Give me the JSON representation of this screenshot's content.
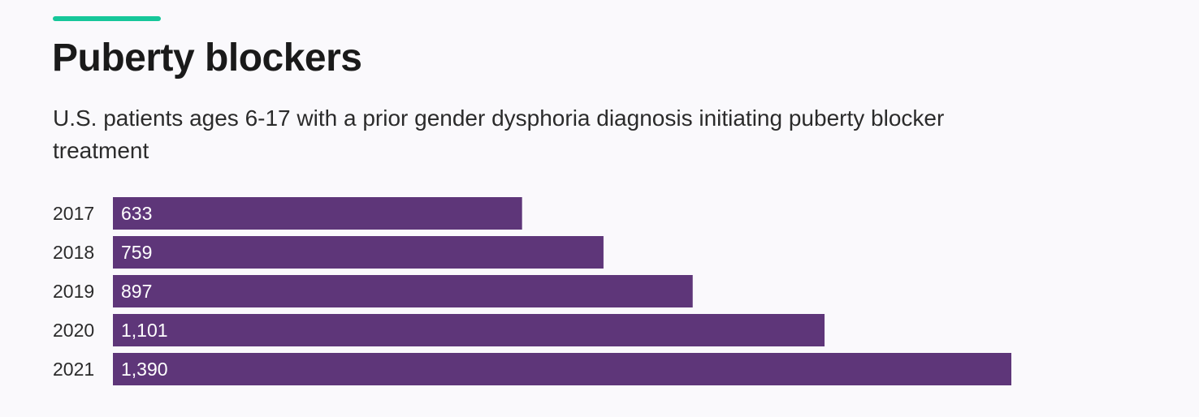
{
  "colors": {
    "accent": "#16c79a",
    "bar": "#5e3679",
    "background": "#faf9fc"
  },
  "header": {
    "title": "Puberty blockers",
    "subtitle": "U.S. patients ages 6-17 with a prior gender dysphoria diagnosis initiating puberty blocker treatment"
  },
  "chart_data": {
    "type": "bar",
    "orientation": "horizontal",
    "title": "Puberty blockers",
    "subtitle": "U.S. patients ages 6-17 with a prior gender dysphoria diagnosis initiating puberty blocker treatment",
    "categories": [
      "2017",
      "2018",
      "2019",
      "2020",
      "2021"
    ],
    "values": [
      633,
      759,
      897,
      1101,
      1390
    ],
    "value_labels": [
      "633",
      "759",
      "897",
      "1,101",
      "1,390"
    ],
    "xlabel": "",
    "ylabel": "",
    "grid": false,
    "legend": "none"
  }
}
